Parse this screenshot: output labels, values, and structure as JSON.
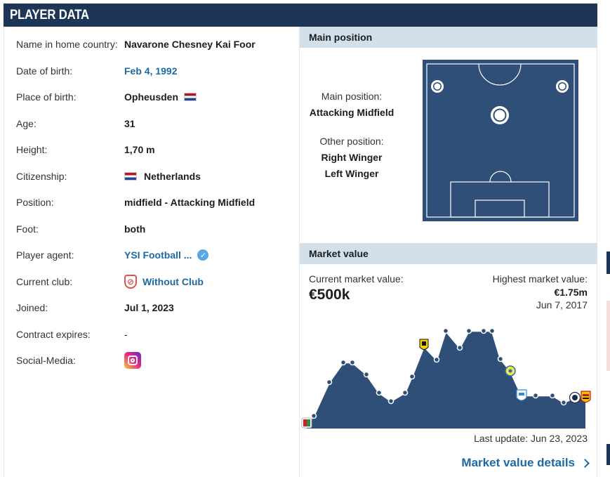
{
  "header": {
    "title": "PLAYER DATA"
  },
  "player": {
    "rows": [
      {
        "label": "Name in home country:",
        "value": "Navarone Chesney Kai Foor"
      },
      {
        "label": "Date of birth:",
        "value": "Feb 4, 1992"
      },
      {
        "label": "Place of birth:",
        "value": "Opheusden"
      },
      {
        "label": "Age:",
        "value": "31"
      },
      {
        "label": "Height:",
        "value": "1,70 m"
      },
      {
        "label": "Citizenship:",
        "value": "Netherlands"
      },
      {
        "label": "Position:",
        "value": "midfield - Attacking Midfield"
      },
      {
        "label": "Foot:",
        "value": "both"
      },
      {
        "label": "Player agent:",
        "value": "YSI Football ..."
      },
      {
        "label": "Current club:",
        "value": "Without Club"
      },
      {
        "label": "Joined:",
        "value": "Jul 1, 2023"
      },
      {
        "label": "Contract expires:",
        "value": "-"
      },
      {
        "label": "Social-Media:",
        "value": ""
      }
    ],
    "flag_colors": [
      "#ae1c28",
      "#ffffff",
      "#21468b"
    ]
  },
  "main_position": {
    "heading": "Main position",
    "main_label": "Main position:",
    "main_value": "Attacking Midfield",
    "other_label": "Other position:",
    "other_values": [
      "Right Winger",
      "Left Winger"
    ]
  },
  "market_value": {
    "heading": "Market value",
    "current_label": "Current market value:",
    "current_value": "€500k",
    "highest_label": "Highest market value:",
    "highest_value": "€1.75m",
    "highest_date": "Jun 7, 2017",
    "last_update": "Last update: Jun 23, 2023",
    "details_link": "Market value details"
  },
  "colors": {
    "header_bg": "#1d3557",
    "section_bg": "#d2e0ec",
    "link": "#1c6aa4",
    "pitch": "#2f4f78",
    "chart_fill": "#2f4f78"
  }
}
